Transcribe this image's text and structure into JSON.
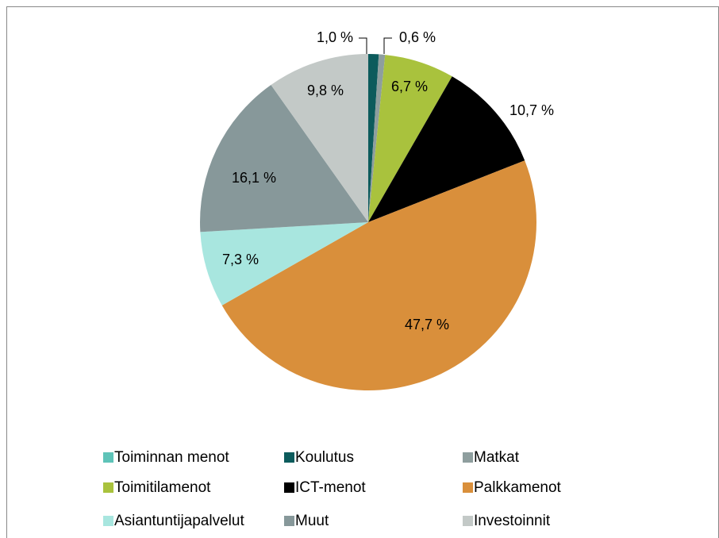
{
  "chart_data": {
    "type": "pie",
    "categories": [
      "Toiminnan menot",
      "Koulutus",
      "Matkat",
      "Toimitilamenot",
      "ICT-menot",
      "Palkkamenot",
      "Asiantuntijapalvelut",
      "Muut",
      "Investoinnit"
    ],
    "values": [
      0,
      1.0,
      0.6,
      6.7,
      10.7,
      47.7,
      7.3,
      16.1,
      9.8
    ],
    "value_labels": [
      null,
      "1,0 %",
      "0,6 %",
      "6,7 %",
      "10,7 %",
      "47,7 %",
      "7,3 %",
      "16,1 %",
      "9,8 %"
    ],
    "colors": [
      "#5ec3b8",
      "#0c5b5c",
      "#8e9e9e",
      "#a9c23d",
      "#000000",
      "#d98f3b",
      "#a8e6df",
      "#87989a",
      "#c3c9c7"
    ],
    "legend": "bottom"
  }
}
